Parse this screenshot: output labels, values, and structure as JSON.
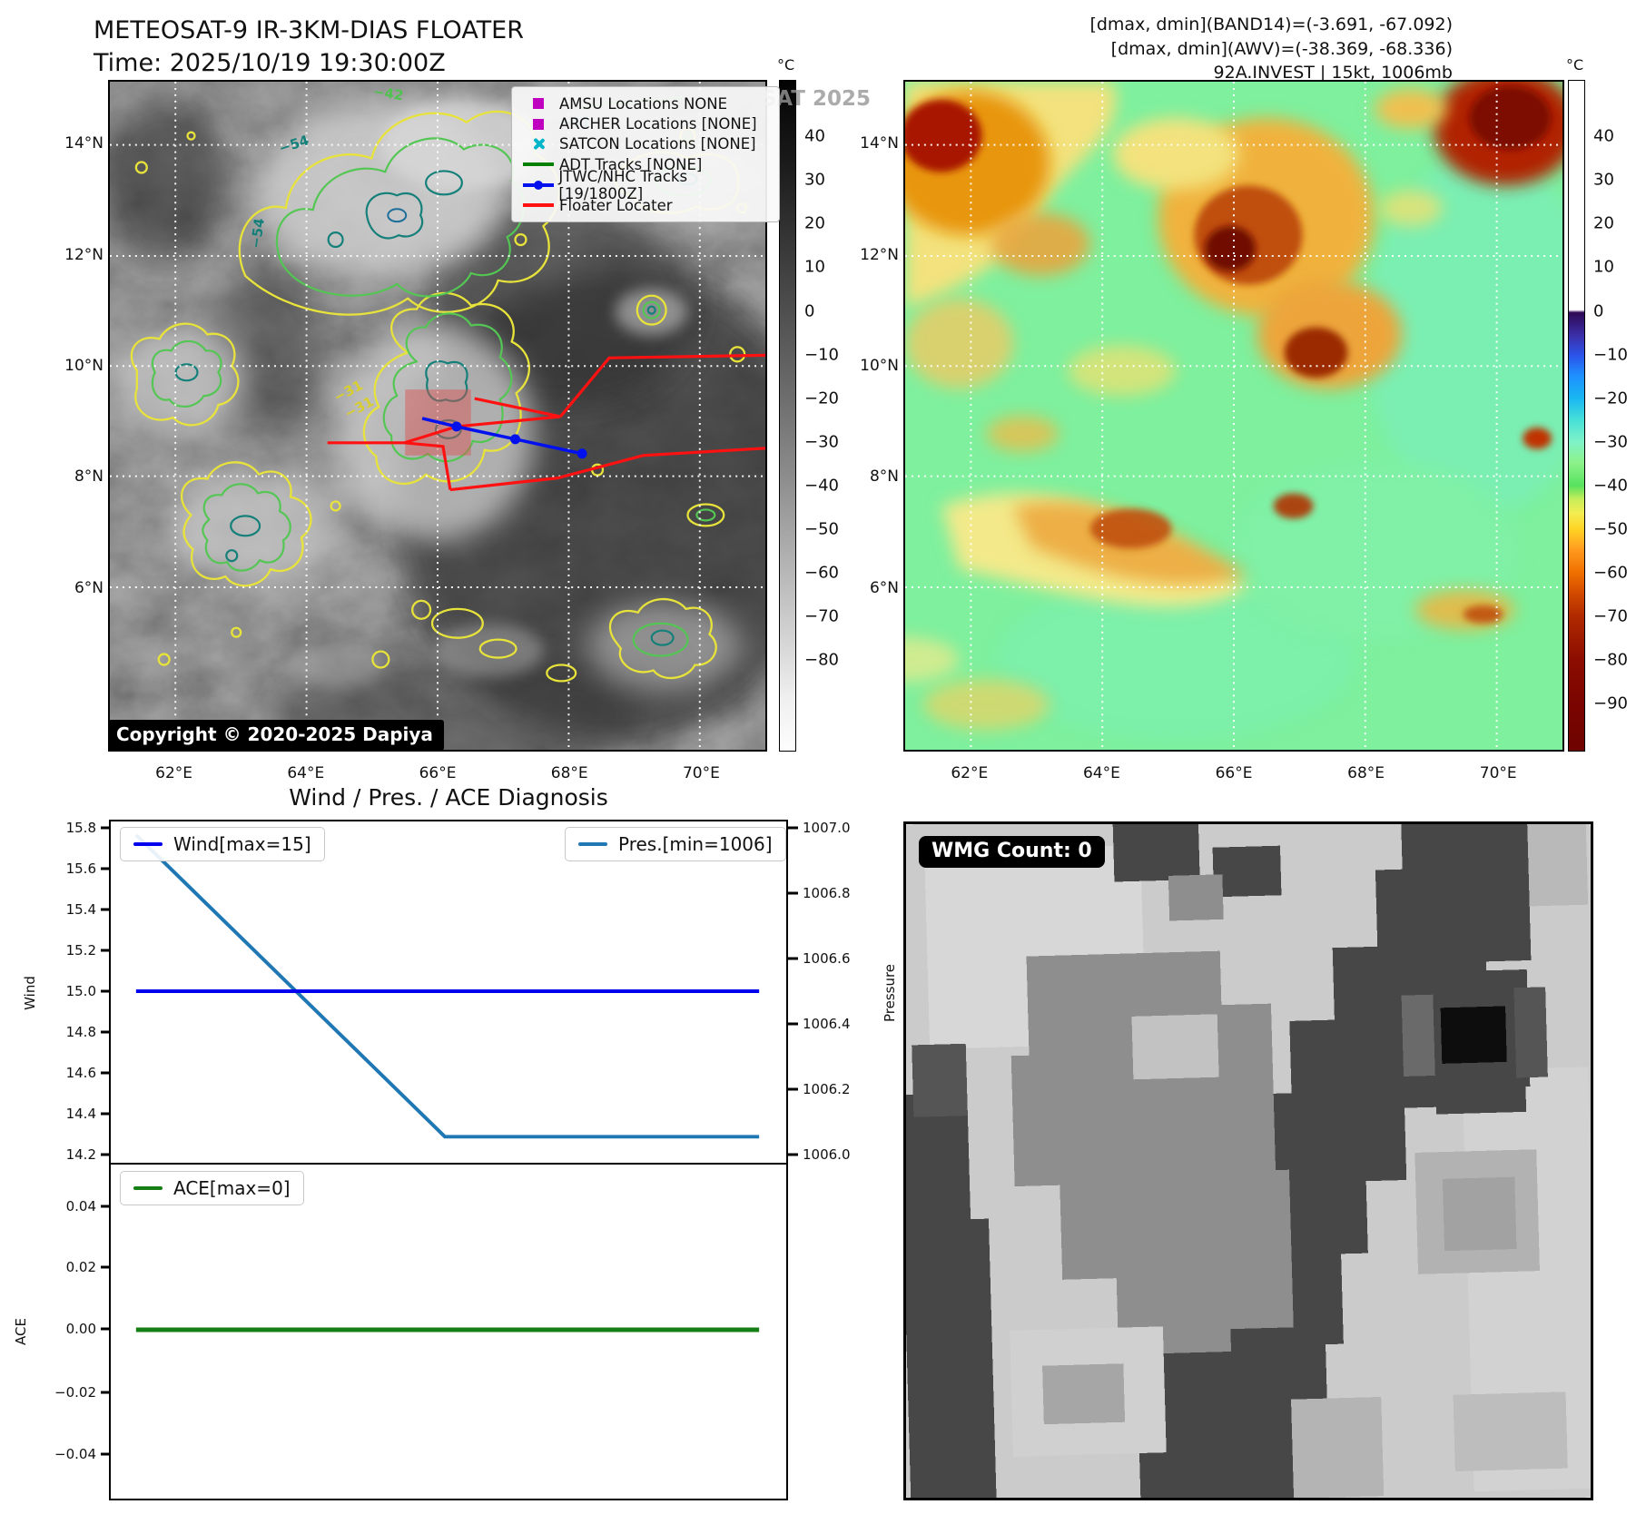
{
  "ir_panel": {
    "title": "METEOSAT-9 IR-3KM-DIAS FLOATER",
    "time_label": "Time: 2025/10/19 19:30:00Z",
    "watermark": "© EUMETSAT 2025",
    "copyright": "Copyright © 2020-2025 Dapiya",
    "legend_items": [
      {
        "label": "AMSU Locations NONE",
        "marker": "magenta-square"
      },
      {
        "label": "ARCHER Locations [NONE]",
        "marker": "magenta-square"
      },
      {
        "label": "SATCON Locations [NONE]",
        "marker": "cyan-x"
      },
      {
        "label": "ADT Tracks [NONE]",
        "marker": "green-line"
      },
      {
        "label": "JTWC/NHC Tracks [19/1800Z]",
        "marker": "blue-line-dot"
      },
      {
        "label": "Floater Locater",
        "marker": "red-line"
      }
    ],
    "contour_labels": [
      "−54",
      "−51",
      "−42",
      "−31"
    ],
    "lat_ticks": [
      "14°N",
      "12°N",
      "10°N",
      "8°N",
      "6°N"
    ],
    "lon_ticks": [
      "62°E",
      "64°E",
      "66°E",
      "68°E",
      "70°E"
    ],
    "colorbar": {
      "unit": "°C",
      "ticks": [
        "40",
        "30",
        "20",
        "10",
        "0",
        "−10",
        "−20",
        "−30",
        "−40",
        "−50",
        "−60",
        "−70",
        "−80"
      ]
    }
  },
  "awv_panel": {
    "header_lines": [
      "[dmax, dmin](BAND14)=(-3.691, -67.092)",
      "[dmax, dmin](AWV)=(-38.369, -68.336)",
      "92A.INVEST | 15kt, 1006mb"
    ],
    "lat_ticks": [
      "14°N",
      "12°N",
      "10°N",
      "8°N",
      "6°N"
    ],
    "lon_ticks": [
      "62°E",
      "64°E",
      "66°E",
      "68°E",
      "70°E"
    ],
    "colorbar": {
      "unit": "°C",
      "ticks": [
        "40",
        "30",
        "20",
        "10",
        "0",
        "−10",
        "−20",
        "−30",
        "−40",
        "−50",
        "−60",
        "−70",
        "−80",
        "−90"
      ]
    }
  },
  "diagnosis": {
    "title": "Wind / Pres. / ACE Diagnosis",
    "wind_axis_label": "Wind",
    "pressure_axis_label": "Pressure",
    "ace_axis_label": "ACE",
    "wind_yticks": [
      "15.8",
      "15.6",
      "15.4",
      "15.2",
      "15.0",
      "14.8",
      "14.6",
      "14.4",
      "14.2"
    ],
    "pressure_yticks": [
      "1007.0",
      "1006.8",
      "1006.6",
      "1006.4",
      "1006.2",
      "1006.0"
    ],
    "ace_yticks": [
      "0.04",
      "0.02",
      "0.00",
      "−0.02",
      "−0.04"
    ],
    "wind_legend": "Wind[max=15]",
    "pres_legend": "Pres.[min=1006]",
    "ace_legend": "ACE[max=0]"
  },
  "wmg_panel": {
    "count_label": "WMG Count: 0"
  },
  "chart_data": [
    {
      "type": "line",
      "title": "Wind / Pres. / ACE Diagnosis",
      "ylabel": "Wind",
      "ylabel_right": "Pressure",
      "ylim": [
        14.14,
        15.84
      ],
      "ylim_right": [
        1005.93,
        1007.03
      ],
      "yticks": [
        15.8,
        15.6,
        15.4,
        15.2,
        15.0,
        14.8,
        14.6,
        14.4,
        14.2
      ],
      "yticks_right": [
        1007.0,
        1006.8,
        1006.6,
        1006.4,
        1006.2,
        1006.0
      ],
      "grid": false,
      "legend_position": "upper-left and upper-right",
      "series": [
        {
          "name": "Wind[max=15]",
          "axis": "left",
          "color": "#0000ee",
          "x_frac": [
            0.04,
            0.96
          ],
          "values": [
            15.0,
            15.0
          ]
        },
        {
          "name": "Pres.[min=1006]",
          "axis": "right",
          "color": "#1f77b4",
          "x_frac": [
            0.04,
            0.49,
            0.96
          ],
          "values": [
            1007.0,
            1006.06,
            1006.06
          ]
        }
      ]
    },
    {
      "type": "line",
      "ylabel": "ACE",
      "ylim": [
        -0.057,
        0.057
      ],
      "yticks": [
        0.04,
        0.02,
        0.0,
        -0.02,
        -0.04
      ],
      "grid": false,
      "legend_position": "upper-left",
      "series": [
        {
          "name": "ACE[max=0]",
          "color": "#157f15",
          "x_frac": [
            0.04,
            0.96
          ],
          "values": [
            0.0,
            0.0
          ]
        }
      ]
    }
  ],
  "colors": {
    "floater_red": "#ff1111",
    "track_blue": "#0011ee",
    "amsu_magenta": "#bf00bf",
    "satcon_cyan": "#00b5c9",
    "adt_green": "#008000",
    "wind_line": "#0000ee",
    "pres_line": "#1f77b4",
    "ace_line": "#157f15"
  }
}
